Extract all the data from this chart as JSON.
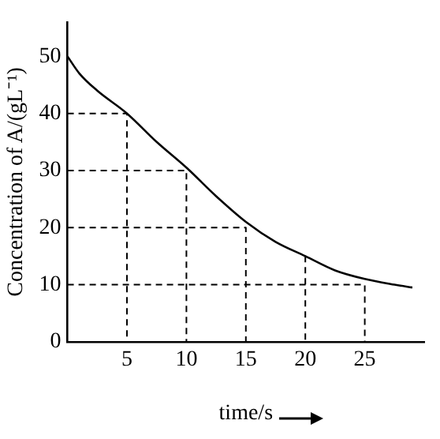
{
  "chart_data": {
    "type": "line",
    "xlabel": "time/s",
    "ylabel": "Concentration of A/(gL⁻¹)",
    "xlim": [
      0,
      30
    ],
    "ylim": [
      0,
      56
    ],
    "xticks": [
      5,
      10,
      15,
      20,
      25
    ],
    "yticks": [
      0,
      10,
      20,
      30,
      40,
      50
    ],
    "grid": false,
    "legend": false,
    "marker": "none",
    "series": [
      {
        "color": "#000000",
        "line_style": "solid",
        "x": [
          0,
          1,
          2.5,
          5,
          7.5,
          10,
          12.5,
          15,
          17.5,
          20,
          22.5,
          25,
          27.5,
          29
        ],
        "values": [
          50,
          47,
          44,
          40,
          35,
          30.5,
          25.5,
          21,
          17.5,
          15,
          12.5,
          11,
          10,
          9.5
        ]
      },
      {
        "color": "#000000",
        "line_style": "dashed",
        "x": [
          0,
          5,
          5
        ],
        "values": [
          40,
          40,
          0
        ]
      },
      {
        "color": "#000000",
        "line_style": "dashed",
        "x": [
          0,
          10,
          10
        ],
        "values": [
          30,
          30,
          0
        ]
      },
      {
        "color": "#000000",
        "line_style": "dashed",
        "x": [
          0,
          15,
          15
        ],
        "values": [
          20,
          20,
          0
        ]
      },
      {
        "color": "#000000",
        "line_style": "dashed",
        "x": [
          20,
          20
        ],
        "values": [
          15,
          0
        ]
      },
      {
        "color": "#000000",
        "line_style": "dashed",
        "x": [
          0,
          25,
          25
        ],
        "values": [
          10,
          10,
          0
        ]
      }
    ]
  }
}
